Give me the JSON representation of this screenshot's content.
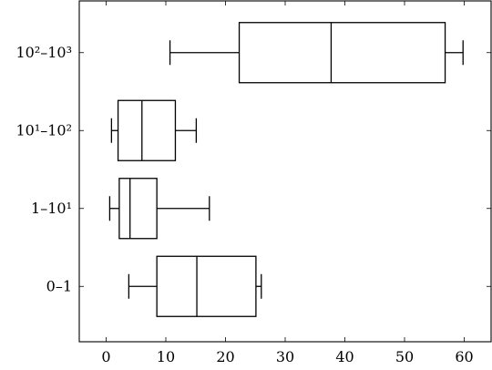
{
  "chart_data": {
    "type": "boxplot",
    "orientation": "horizontal",
    "title": "",
    "xlabel": "",
    "ylabel": "",
    "xlim": [
      -4.5,
      64.5
    ],
    "x_ticks": [
      0,
      10,
      20,
      30,
      40,
      50,
      60
    ],
    "grid": false,
    "categories": [
      {
        "label": "0–1",
        "whisker_low": 3.8,
        "q1": 8.5,
        "median": 15.2,
        "q3": 25.1,
        "whisker_high": 26.0
      },
      {
        "label": "1–10¹",
        "whisker_low": 0.6,
        "q1": 2.2,
        "median": 4.0,
        "q3": 8.5,
        "whisker_high": 17.3
      },
      {
        "label": "10¹–10²",
        "whisker_low": 0.9,
        "q1": 2.0,
        "median": 6.0,
        "q3": 11.6,
        "whisker_high": 15.1
      },
      {
        "label": "10²–10³",
        "whisker_low": 10.7,
        "q1": 22.3,
        "median": 37.7,
        "q3": 56.8,
        "whisker_high": 59.8
      }
    ]
  }
}
